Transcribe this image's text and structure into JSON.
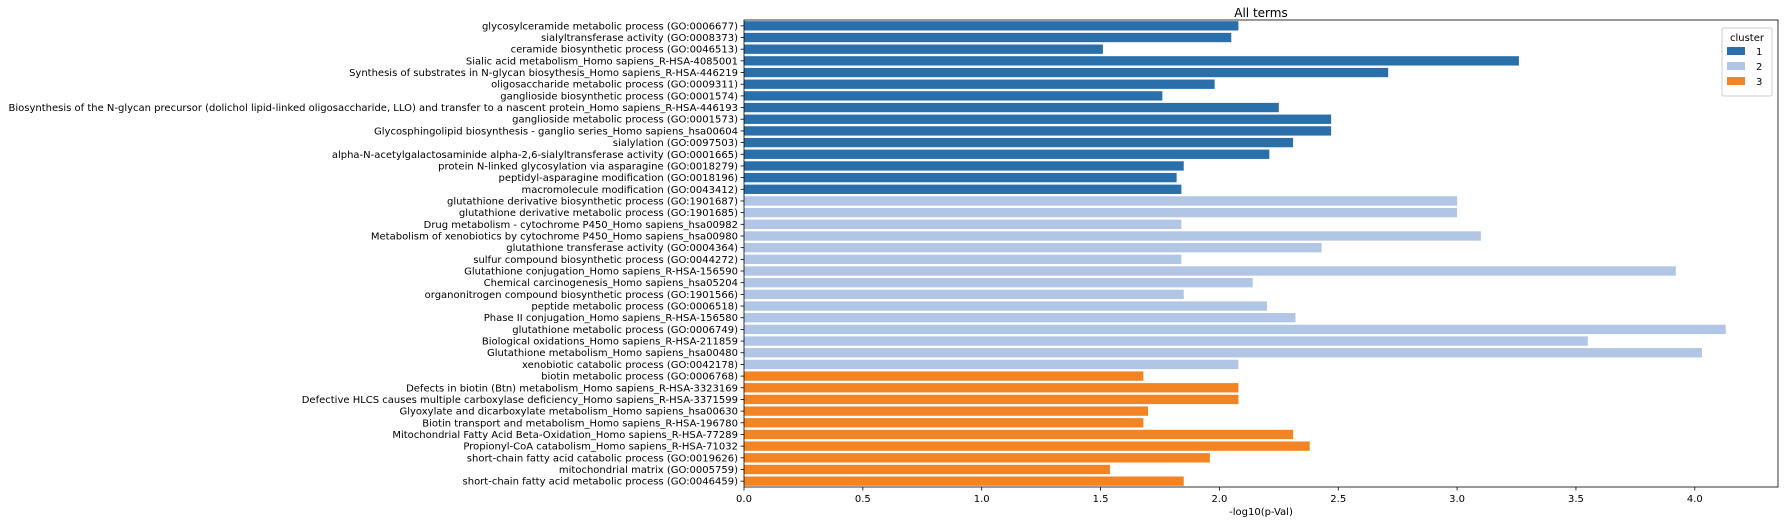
{
  "chart_data": {
    "type": "bar",
    "orientation": "horizontal",
    "title": "All terms",
    "xlabel": "-log10(p-Val)",
    "ylabel": "",
    "xlim": [
      0,
      4.35
    ],
    "xticks": [
      "0.0",
      "0.5",
      "1.0",
      "1.5",
      "2.0",
      "2.5",
      "3.0",
      "3.5",
      "4.0"
    ],
    "grid": false,
    "legend": {
      "title": "cluster",
      "position": "top-right",
      "entries": [
        {
          "label": "1",
          "color": "#2a6fa9"
        },
        {
          "label": "2",
          "color": "#b0c6e4"
        },
        {
          "label": "3",
          "color": "#f28424"
        }
      ]
    },
    "categories": [
      "glycosylceramide metabolic process (GO:0006677)",
      "sialyltransferase activity (GO:0008373)",
      "ceramide biosynthetic process (GO:0046513)",
      "Sialic acid metabolism_Homo sapiens_R-HSA-4085001",
      "Synthesis of substrates in N-glycan biosythesis_Homo sapiens_R-HSA-446219",
      "oligosaccharide metabolic process (GO:0009311)",
      "ganglioside biosynthetic process (GO:0001574)",
      "Biosynthesis of the N-glycan precursor (dolichol lipid-linked oligosaccharide, LLO) and transfer to a nascent protein_Homo sapiens_R-HSA-446193",
      "ganglioside metabolic process (GO:0001573)",
      "Glycosphingolipid biosynthesis - ganglio series_Homo sapiens_hsa00604",
      "sialylation (GO:0097503)",
      "alpha-N-acetylgalactosaminide alpha-2,6-sialyltransferase activity (GO:0001665)",
      "protein N-linked glycosylation via asparagine (GO:0018279)",
      "peptidyl-asparagine modification (GO:0018196)",
      "macromolecule modification (GO:0043412)",
      "glutathione derivative biosynthetic process (GO:1901687)",
      "glutathione derivative metabolic process (GO:1901685)",
      "Drug metabolism - cytochrome P450_Homo sapiens_hsa00982",
      "Metabolism of xenobiotics by cytochrome P450_Homo sapiens_hsa00980",
      "glutathione transferase activity (GO:0004364)",
      "sulfur compound biosynthetic process (GO:0044272)",
      "Glutathione conjugation_Homo sapiens_R-HSA-156590",
      "Chemical carcinogenesis_Homo sapiens_hsa05204",
      "organonitrogen compound biosynthetic process (GO:1901566)",
      "peptide metabolic process (GO:0006518)",
      "Phase II conjugation_Homo sapiens_R-HSA-156580",
      "glutathione metabolic process (GO:0006749)",
      "Biological oxidations_Homo sapiens_R-HSA-211859",
      "Glutathione metabolism_Homo sapiens_hsa00480",
      "xenobiotic catabolic process (GO:0042178)",
      "biotin metabolic process (GO:0006768)",
      "Defects in biotin (Btn) metabolism_Homo sapiens_R-HSA-3323169",
      "Defective HLCS causes multiple carboxylase deficiency_Homo sapiens_R-HSA-3371599",
      "Glyoxylate and dicarboxylate metabolism_Homo sapiens_hsa00630",
      "Biotin transport and metabolism_Homo sapiens_R-HSA-196780",
      "Mitochondrial Fatty Acid Beta-Oxidation_Homo sapiens_R-HSA-77289",
      "Propionyl-CoA catabolism_Homo sapiens_R-HSA-71032",
      "short-chain fatty acid catabolic process (GO:0019626)",
      "mitochondrial matrix (GO:0005759)",
      "short-chain fatty acid metabolic process (GO:0046459)"
    ],
    "values": [
      2.08,
      2.05,
      1.51,
      3.26,
      2.71,
      1.98,
      1.76,
      2.25,
      2.47,
      2.47,
      2.31,
      2.21,
      1.85,
      1.82,
      1.84,
      3.0,
      3.0,
      1.84,
      3.1,
      2.43,
      1.84,
      3.92,
      2.14,
      1.85,
      2.2,
      2.32,
      4.13,
      3.55,
      4.03,
      2.08,
      1.68,
      2.08,
      2.08,
      1.7,
      1.68,
      2.31,
      2.38,
      1.96,
      1.54,
      1.85
    ],
    "clusters": [
      "1",
      "1",
      "1",
      "1",
      "1",
      "1",
      "1",
      "1",
      "1",
      "1",
      "1",
      "1",
      "1",
      "1",
      "1",
      "2",
      "2",
      "2",
      "2",
      "2",
      "2",
      "2",
      "2",
      "2",
      "2",
      "2",
      "2",
      "2",
      "2",
      "2",
      "3",
      "3",
      "3",
      "3",
      "3",
      "3",
      "3",
      "3",
      "3",
      "3"
    ]
  }
}
